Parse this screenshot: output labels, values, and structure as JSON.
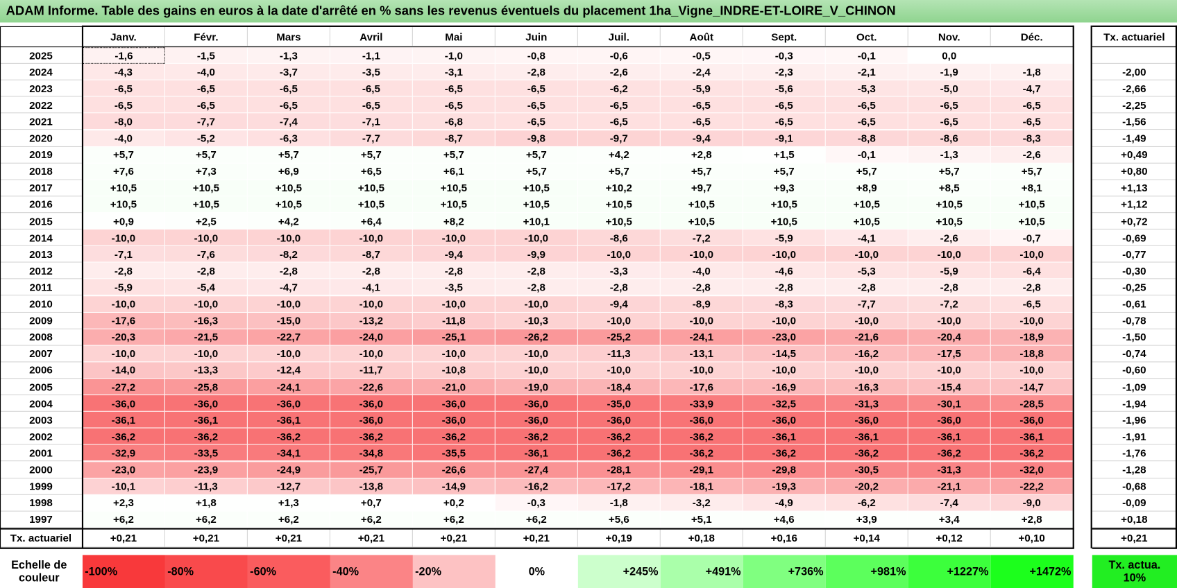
{
  "title": "ADAM Informe. Table des gains en euros à la date d'arrêté en % sans les revenus éventuels du placement 1ha_Vigne_INDRE-ET-LOIRE_V_CHINON",
  "months": [
    "Janv.",
    "Févr.",
    "Mars",
    "Avril",
    "Mai",
    "Juin",
    "Juil.",
    "Août",
    "Sept.",
    "Oct.",
    "Nov.",
    "Déc."
  ],
  "tx_header": "Tx. actuariel",
  "rows": [
    {
      "year": "2025",
      "values": [
        "-1,6",
        "-1,5",
        "-1,3",
        "-1,1",
        "-1,0",
        "-0,8",
        "-0,6",
        "-0,5",
        "-0,3",
        "-0,1",
        "0,0",
        null
      ],
      "tx": null
    },
    {
      "year": "2024",
      "values": [
        "-4,3",
        "-4,0",
        "-3,7",
        "-3,5",
        "-3,1",
        "-2,8",
        "-2,6",
        "-2,4",
        "-2,3",
        "-2,1",
        "-1,9",
        "-1,8"
      ],
      "tx": "-2,00"
    },
    {
      "year": "2023",
      "values": [
        "-6,5",
        "-6,5",
        "-6,5",
        "-6,5",
        "-6,5",
        "-6,5",
        "-6,2",
        "-5,9",
        "-5,6",
        "-5,3",
        "-5,0",
        "-4,7"
      ],
      "tx": "-2,66"
    },
    {
      "year": "2022",
      "values": [
        "-6,5",
        "-6,5",
        "-6,5",
        "-6,5",
        "-6,5",
        "-6,5",
        "-6,5",
        "-6,5",
        "-6,5",
        "-6,5",
        "-6,5",
        "-6,5"
      ],
      "tx": "-2,25"
    },
    {
      "year": "2021",
      "values": [
        "-8,0",
        "-7,7",
        "-7,4",
        "-7,1",
        "-6,8",
        "-6,5",
        "-6,5",
        "-6,5",
        "-6,5",
        "-6,5",
        "-6,5",
        "-6,5"
      ],
      "tx": "-1,56"
    },
    {
      "year": "2020",
      "values": [
        "-4,0",
        "-5,2",
        "-6,3",
        "-7,7",
        "-8,7",
        "-9,8",
        "-9,7",
        "-9,4",
        "-9,1",
        "-8,8",
        "-8,6",
        "-8,3"
      ],
      "tx": "-1,49"
    },
    {
      "year": "2019",
      "values": [
        "+5,7",
        "+5,7",
        "+5,7",
        "+5,7",
        "+5,7",
        "+5,7",
        "+4,2",
        "+2,8",
        "+1,5",
        "-0,1",
        "-1,3",
        "-2,6"
      ],
      "tx": "+0,49"
    },
    {
      "year": "2018",
      "values": [
        "+7,6",
        "+7,3",
        "+6,9",
        "+6,5",
        "+6,1",
        "+5,7",
        "+5,7",
        "+5,7",
        "+5,7",
        "+5,7",
        "+5,7",
        "+5,7"
      ],
      "tx": "+0,80"
    },
    {
      "year": "2017",
      "values": [
        "+10,5",
        "+10,5",
        "+10,5",
        "+10,5",
        "+10,5",
        "+10,5",
        "+10,2",
        "+9,7",
        "+9,3",
        "+8,9",
        "+8,5",
        "+8,1"
      ],
      "tx": "+1,13"
    },
    {
      "year": "2016",
      "values": [
        "+10,5",
        "+10,5",
        "+10,5",
        "+10,5",
        "+10,5",
        "+10,5",
        "+10,5",
        "+10,5",
        "+10,5",
        "+10,5",
        "+10,5",
        "+10,5"
      ],
      "tx": "+1,12"
    },
    {
      "year": "2015",
      "values": [
        "+0,9",
        "+2,5",
        "+4,2",
        "+6,4",
        "+8,2",
        "+10,1",
        "+10,5",
        "+10,5",
        "+10,5",
        "+10,5",
        "+10,5",
        "+10,5"
      ],
      "tx": "+0,72"
    },
    {
      "year": "2014",
      "values": [
        "-10,0",
        "-10,0",
        "-10,0",
        "-10,0",
        "-10,0",
        "-10,0",
        "-8,6",
        "-7,2",
        "-5,9",
        "-4,1",
        "-2,6",
        "-0,7"
      ],
      "tx": "-0,69"
    },
    {
      "year": "2013",
      "values": [
        "-7,1",
        "-7,6",
        "-8,2",
        "-8,7",
        "-9,4",
        "-9,9",
        "-10,0",
        "-10,0",
        "-10,0",
        "-10,0",
        "-10,0",
        "-10,0"
      ],
      "tx": "-0,77"
    },
    {
      "year": "2012",
      "values": [
        "-2,8",
        "-2,8",
        "-2,8",
        "-2,8",
        "-2,8",
        "-2,8",
        "-3,3",
        "-4,0",
        "-4,6",
        "-5,3",
        "-5,9",
        "-6,4"
      ],
      "tx": "-0,30"
    },
    {
      "year": "2011",
      "values": [
        "-5,9",
        "-5,4",
        "-4,7",
        "-4,1",
        "-3,5",
        "-2,8",
        "-2,8",
        "-2,8",
        "-2,8",
        "-2,8",
        "-2,8",
        "-2,8"
      ],
      "tx": "-0,25"
    },
    {
      "year": "2010",
      "values": [
        "-10,0",
        "-10,0",
        "-10,0",
        "-10,0",
        "-10,0",
        "-10,0",
        "-9,4",
        "-8,9",
        "-8,3",
        "-7,7",
        "-7,2",
        "-6,5"
      ],
      "tx": "-0,61"
    },
    {
      "year": "2009",
      "values": [
        "-17,6",
        "-16,3",
        "-15,0",
        "-13,2",
        "-11,8",
        "-10,3",
        "-10,0",
        "-10,0",
        "-10,0",
        "-10,0",
        "-10,0",
        "-10,0"
      ],
      "tx": "-0,78"
    },
    {
      "year": "2008",
      "values": [
        "-20,3",
        "-21,5",
        "-22,7",
        "-24,0",
        "-25,1",
        "-26,2",
        "-25,2",
        "-24,1",
        "-23,0",
        "-21,6",
        "-20,4",
        "-18,9"
      ],
      "tx": "-1,50"
    },
    {
      "year": "2007",
      "values": [
        "-10,0",
        "-10,0",
        "-10,0",
        "-10,0",
        "-10,0",
        "-10,0",
        "-11,3",
        "-13,1",
        "-14,5",
        "-16,2",
        "-17,5",
        "-18,8"
      ],
      "tx": "-0,74"
    },
    {
      "year": "2006",
      "values": [
        "-14,0",
        "-13,3",
        "-12,4",
        "-11,7",
        "-10,8",
        "-10,0",
        "-10,0",
        "-10,0",
        "-10,0",
        "-10,0",
        "-10,0",
        "-10,0"
      ],
      "tx": "-0,60"
    },
    {
      "year": "2005",
      "values": [
        "-27,2",
        "-25,8",
        "-24,1",
        "-22,6",
        "-21,0",
        "-19,0",
        "-18,4",
        "-17,6",
        "-16,9",
        "-16,3",
        "-15,4",
        "-14,7"
      ],
      "tx": "-1,09"
    },
    {
      "year": "2004",
      "values": [
        "-36,0",
        "-36,0",
        "-36,0",
        "-36,0",
        "-36,0",
        "-36,0",
        "-35,0",
        "-33,9",
        "-32,5",
        "-31,3",
        "-30,1",
        "-28,5"
      ],
      "tx": "-1,94"
    },
    {
      "year": "2003",
      "values": [
        "-36,1",
        "-36,1",
        "-36,1",
        "-36,0",
        "-36,0",
        "-36,0",
        "-36,0",
        "-36,0",
        "-36,0",
        "-36,0",
        "-36,0",
        "-36,0"
      ],
      "tx": "-1,96"
    },
    {
      "year": "2002",
      "values": [
        "-36,2",
        "-36,2",
        "-36,2",
        "-36,2",
        "-36,2",
        "-36,2",
        "-36,2",
        "-36,2",
        "-36,1",
        "-36,1",
        "-36,1",
        "-36,1"
      ],
      "tx": "-1,91"
    },
    {
      "year": "2001",
      "values": [
        "-32,9",
        "-33,5",
        "-34,1",
        "-34,8",
        "-35,5",
        "-36,1",
        "-36,2",
        "-36,2",
        "-36,2",
        "-36,2",
        "-36,2",
        "-36,2"
      ],
      "tx": "-1,76"
    },
    {
      "year": "2000",
      "values": [
        "-23,0",
        "-23,9",
        "-24,9",
        "-25,7",
        "-26,6",
        "-27,4",
        "-28,1",
        "-29,1",
        "-29,8",
        "-30,5",
        "-31,3",
        "-32,0"
      ],
      "tx": "-1,28"
    },
    {
      "year": "1999",
      "values": [
        "-10,1",
        "-11,3",
        "-12,7",
        "-13,8",
        "-14,9",
        "-16,2",
        "-17,2",
        "-18,1",
        "-19,3",
        "-20,2",
        "-21,1",
        "-22,2"
      ],
      "tx": "-0,68"
    },
    {
      "year": "1998",
      "values": [
        "+2,3",
        "+1,8",
        "+1,3",
        "+0,7",
        "+0,2",
        "-0,3",
        "-1,8",
        "-3,2",
        "-4,9",
        "-6,2",
        "-7,4",
        "-9,0"
      ],
      "tx": "-0,09"
    },
    {
      "year": "1997",
      "values": [
        "+6,2",
        "+6,2",
        "+6,2",
        "+6,2",
        "+6,2",
        "+6,2",
        "+5,6",
        "+5,1",
        "+4,6",
        "+3,9",
        "+3,4",
        "+2,8"
      ],
      "tx": "+0,18"
    }
  ],
  "total": {
    "label": "Tx. actuariel",
    "values": [
      "+0,21",
      "+0,21",
      "+0,21",
      "+0,21",
      "+0,21",
      "+0,21",
      "+0,19",
      "+0,18",
      "+0,16",
      "+0,14",
      "+0,12",
      "+0,10"
    ],
    "tx": "+0,21"
  },
  "scale": {
    "label": "Echelle de couleur",
    "items": [
      "-100%",
      "-80%",
      "-60%",
      "-40%",
      "-20%",
      "0%",
      "+245%",
      "+491%",
      "+736%",
      "+981%",
      "+1227%",
      "+1472%"
    ],
    "tx": "Tx. actua. 10%"
  }
}
